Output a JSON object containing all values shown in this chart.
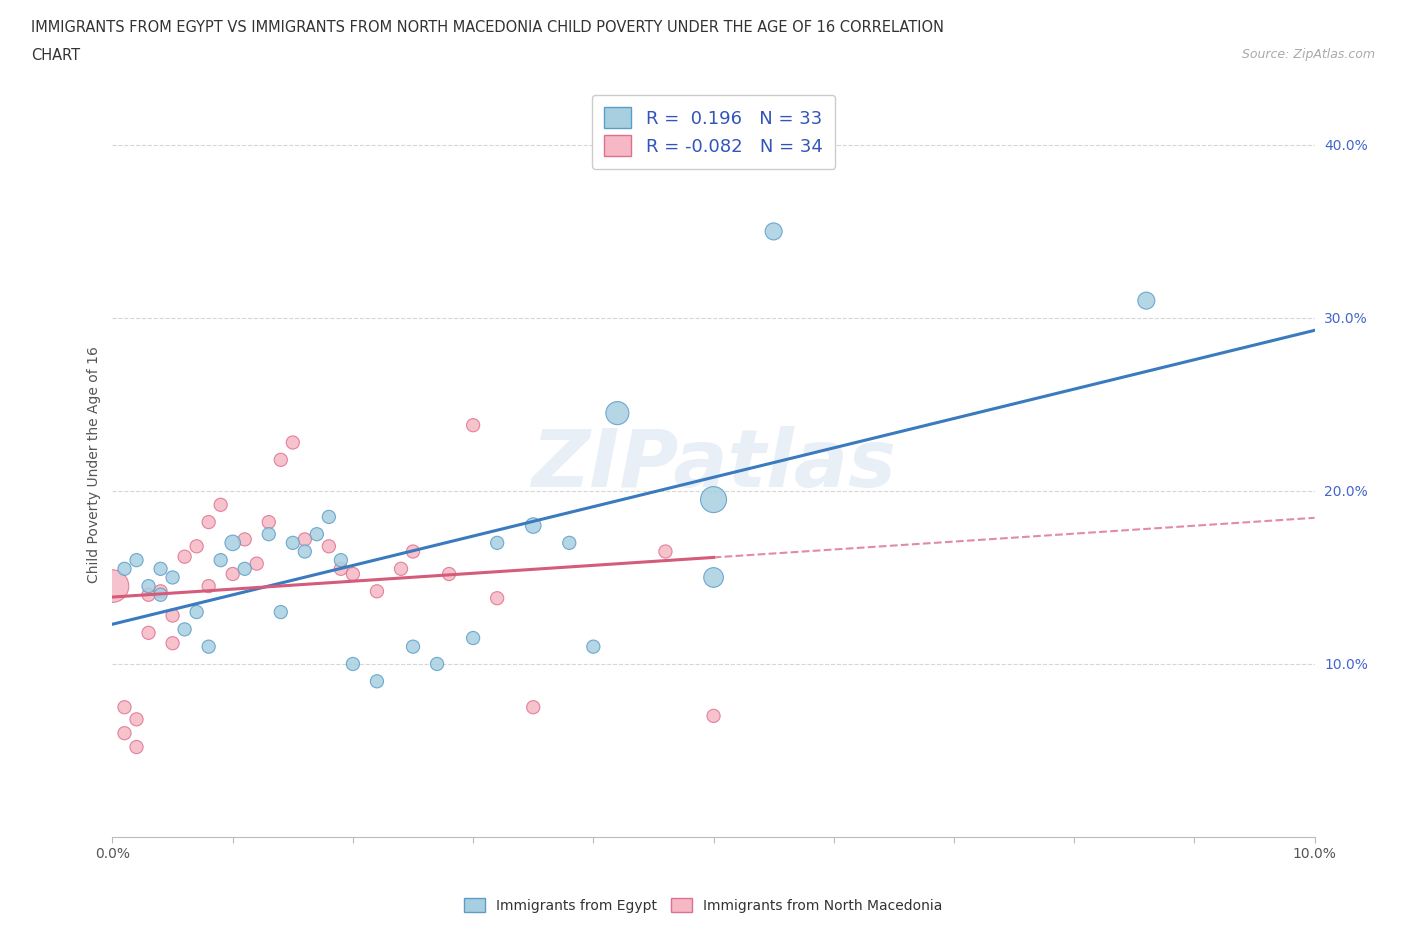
{
  "title_line1": "IMMIGRANTS FROM EGYPT VS IMMIGRANTS FROM NORTH MACEDONIA CHILD POVERTY UNDER THE AGE OF 16 CORRELATION",
  "title_line2": "CHART",
  "source_text": "Source: ZipAtlas.com",
  "ylabel": "Child Poverty Under the Age of 16",
  "xlim": [
    0.0,
    0.1
  ],
  "ylim": [
    0.0,
    0.43
  ],
  "xticks": [
    0.0,
    0.01,
    0.02,
    0.03,
    0.04,
    0.05,
    0.06,
    0.07,
    0.08,
    0.09,
    0.1
  ],
  "yticks": [
    0.1,
    0.2,
    0.3,
    0.4
  ],
  "xtick_labels": [
    "0.0%",
    "",
    "",
    "",
    "",
    "",
    "",
    "",
    "",
    "",
    "10.0%"
  ],
  "ytick_labels": [
    "10.0%",
    "20.0%",
    "30.0%",
    "40.0%"
  ],
  "egypt_color": "#a8cfe0",
  "egypt_edge_color": "#5b9dc9",
  "north_mac_color": "#f5b8c4",
  "north_mac_edge_color": "#e07090",
  "egypt_R": 0.196,
  "egypt_N": 33,
  "north_mac_R": -0.082,
  "north_mac_N": 34,
  "regression_line_blue": "#3a7abf",
  "regression_line_pink": "#d45b7a",
  "egypt_scatter_x": [
    0.001,
    0.002,
    0.003,
    0.004,
    0.004,
    0.005,
    0.006,
    0.007,
    0.008,
    0.009,
    0.01,
    0.011,
    0.013,
    0.014,
    0.015,
    0.016,
    0.017,
    0.018,
    0.019,
    0.02,
    0.022,
    0.025,
    0.027,
    0.03,
    0.032,
    0.035,
    0.038,
    0.04,
    0.042,
    0.05,
    0.055,
    0.086,
    0.05
  ],
  "egypt_scatter_y": [
    0.155,
    0.16,
    0.145,
    0.14,
    0.155,
    0.15,
    0.12,
    0.13,
    0.11,
    0.16,
    0.17,
    0.155,
    0.175,
    0.13,
    0.17,
    0.165,
    0.175,
    0.185,
    0.16,
    0.1,
    0.09,
    0.11,
    0.1,
    0.115,
    0.17,
    0.18,
    0.17,
    0.11,
    0.245,
    0.15,
    0.35,
    0.31,
    0.195
  ],
  "egypt_scatter_size": [
    18,
    18,
    18,
    18,
    18,
    18,
    18,
    18,
    18,
    18,
    25,
    18,
    18,
    18,
    18,
    18,
    18,
    18,
    18,
    18,
    18,
    18,
    18,
    18,
    18,
    25,
    18,
    18,
    55,
    40,
    30,
    30,
    70
  ],
  "north_mac_scatter_x": [
    0.0,
    0.001,
    0.001,
    0.002,
    0.002,
    0.003,
    0.003,
    0.004,
    0.005,
    0.005,
    0.006,
    0.007,
    0.008,
    0.008,
    0.009,
    0.01,
    0.011,
    0.012,
    0.013,
    0.014,
    0.015,
    0.016,
    0.018,
    0.019,
    0.02,
    0.022,
    0.024,
    0.025,
    0.028,
    0.03,
    0.032,
    0.035,
    0.046,
    0.05
  ],
  "north_mac_scatter_y": [
    0.145,
    0.075,
    0.06,
    0.068,
    0.052,
    0.14,
    0.118,
    0.142,
    0.128,
    0.112,
    0.162,
    0.168,
    0.182,
    0.145,
    0.192,
    0.152,
    0.172,
    0.158,
    0.182,
    0.218,
    0.228,
    0.172,
    0.168,
    0.155,
    0.152,
    0.142,
    0.155,
    0.165,
    0.152,
    0.238,
    0.138,
    0.075,
    0.165,
    0.07
  ],
  "north_mac_scatter_size": [
    110,
    18,
    18,
    18,
    18,
    18,
    18,
    18,
    18,
    18,
    18,
    18,
    18,
    18,
    18,
    18,
    18,
    18,
    18,
    18,
    18,
    18,
    18,
    18,
    18,
    18,
    18,
    18,
    18,
    18,
    18,
    18,
    18,
    18
  ],
  "watermark": "ZIPatlas",
  "background_color": "#ffffff",
  "grid_color": "#cccccc"
}
